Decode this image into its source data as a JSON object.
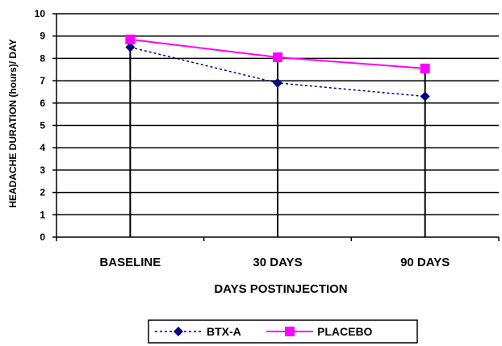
{
  "chart_data": {
    "type": "line",
    "categories": [
      "BASELINE",
      "30 DAYS",
      "90 DAYS"
    ],
    "series": [
      {
        "name": "BTX-A",
        "values": [
          8.5,
          6.9,
          6.3
        ],
        "color": "#000080",
        "marker": "diamond",
        "line_style": "dotted"
      },
      {
        "name": "PLACEBO",
        "values": [
          8.85,
          8.05,
          7.55
        ],
        "color": "#ff00ff",
        "marker": "square",
        "line_style": "solid"
      }
    ],
    "xlabel": "DAYS POSTINJECTION",
    "ylabel": "HEADACHE DURATION (hours)/ DAY",
    "ylim": [
      0,
      10
    ],
    "yticks": [
      "0",
      "1",
      "2",
      "3",
      "4",
      "5",
      "6",
      "7",
      "8",
      "9",
      "10"
    ],
    "grid": true,
    "legend_position": "bottom"
  }
}
